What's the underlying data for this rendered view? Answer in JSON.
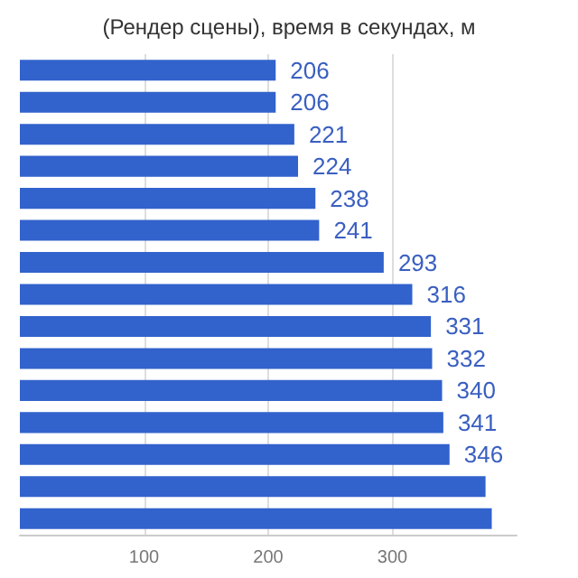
{
  "chart_data": {
    "type": "bar",
    "orientation": "horizontal",
    "title": "(Рендер сцены), время в секундах, м",
    "categories": [
      null,
      null,
      null,
      null,
      null,
      null,
      null,
      null,
      null,
      null,
      null,
      null,
      null,
      null,
      null
    ],
    "values": [
      206,
      206,
      221,
      224,
      238,
      241,
      293,
      316,
      331,
      332,
      340,
      341,
      346,
      375,
      380
    ],
    "value_labels": [
      "206",
      "206",
      "221",
      "224",
      "238",
      "241",
      "293",
      "316",
      "331",
      "332",
      "340",
      "341",
      "346",
      null,
      null
    ],
    "color": "#3262cc",
    "xlim": [
      0,
      400
    ],
    "xticks": [
      100,
      200,
      300
    ],
    "grid": "x"
  }
}
